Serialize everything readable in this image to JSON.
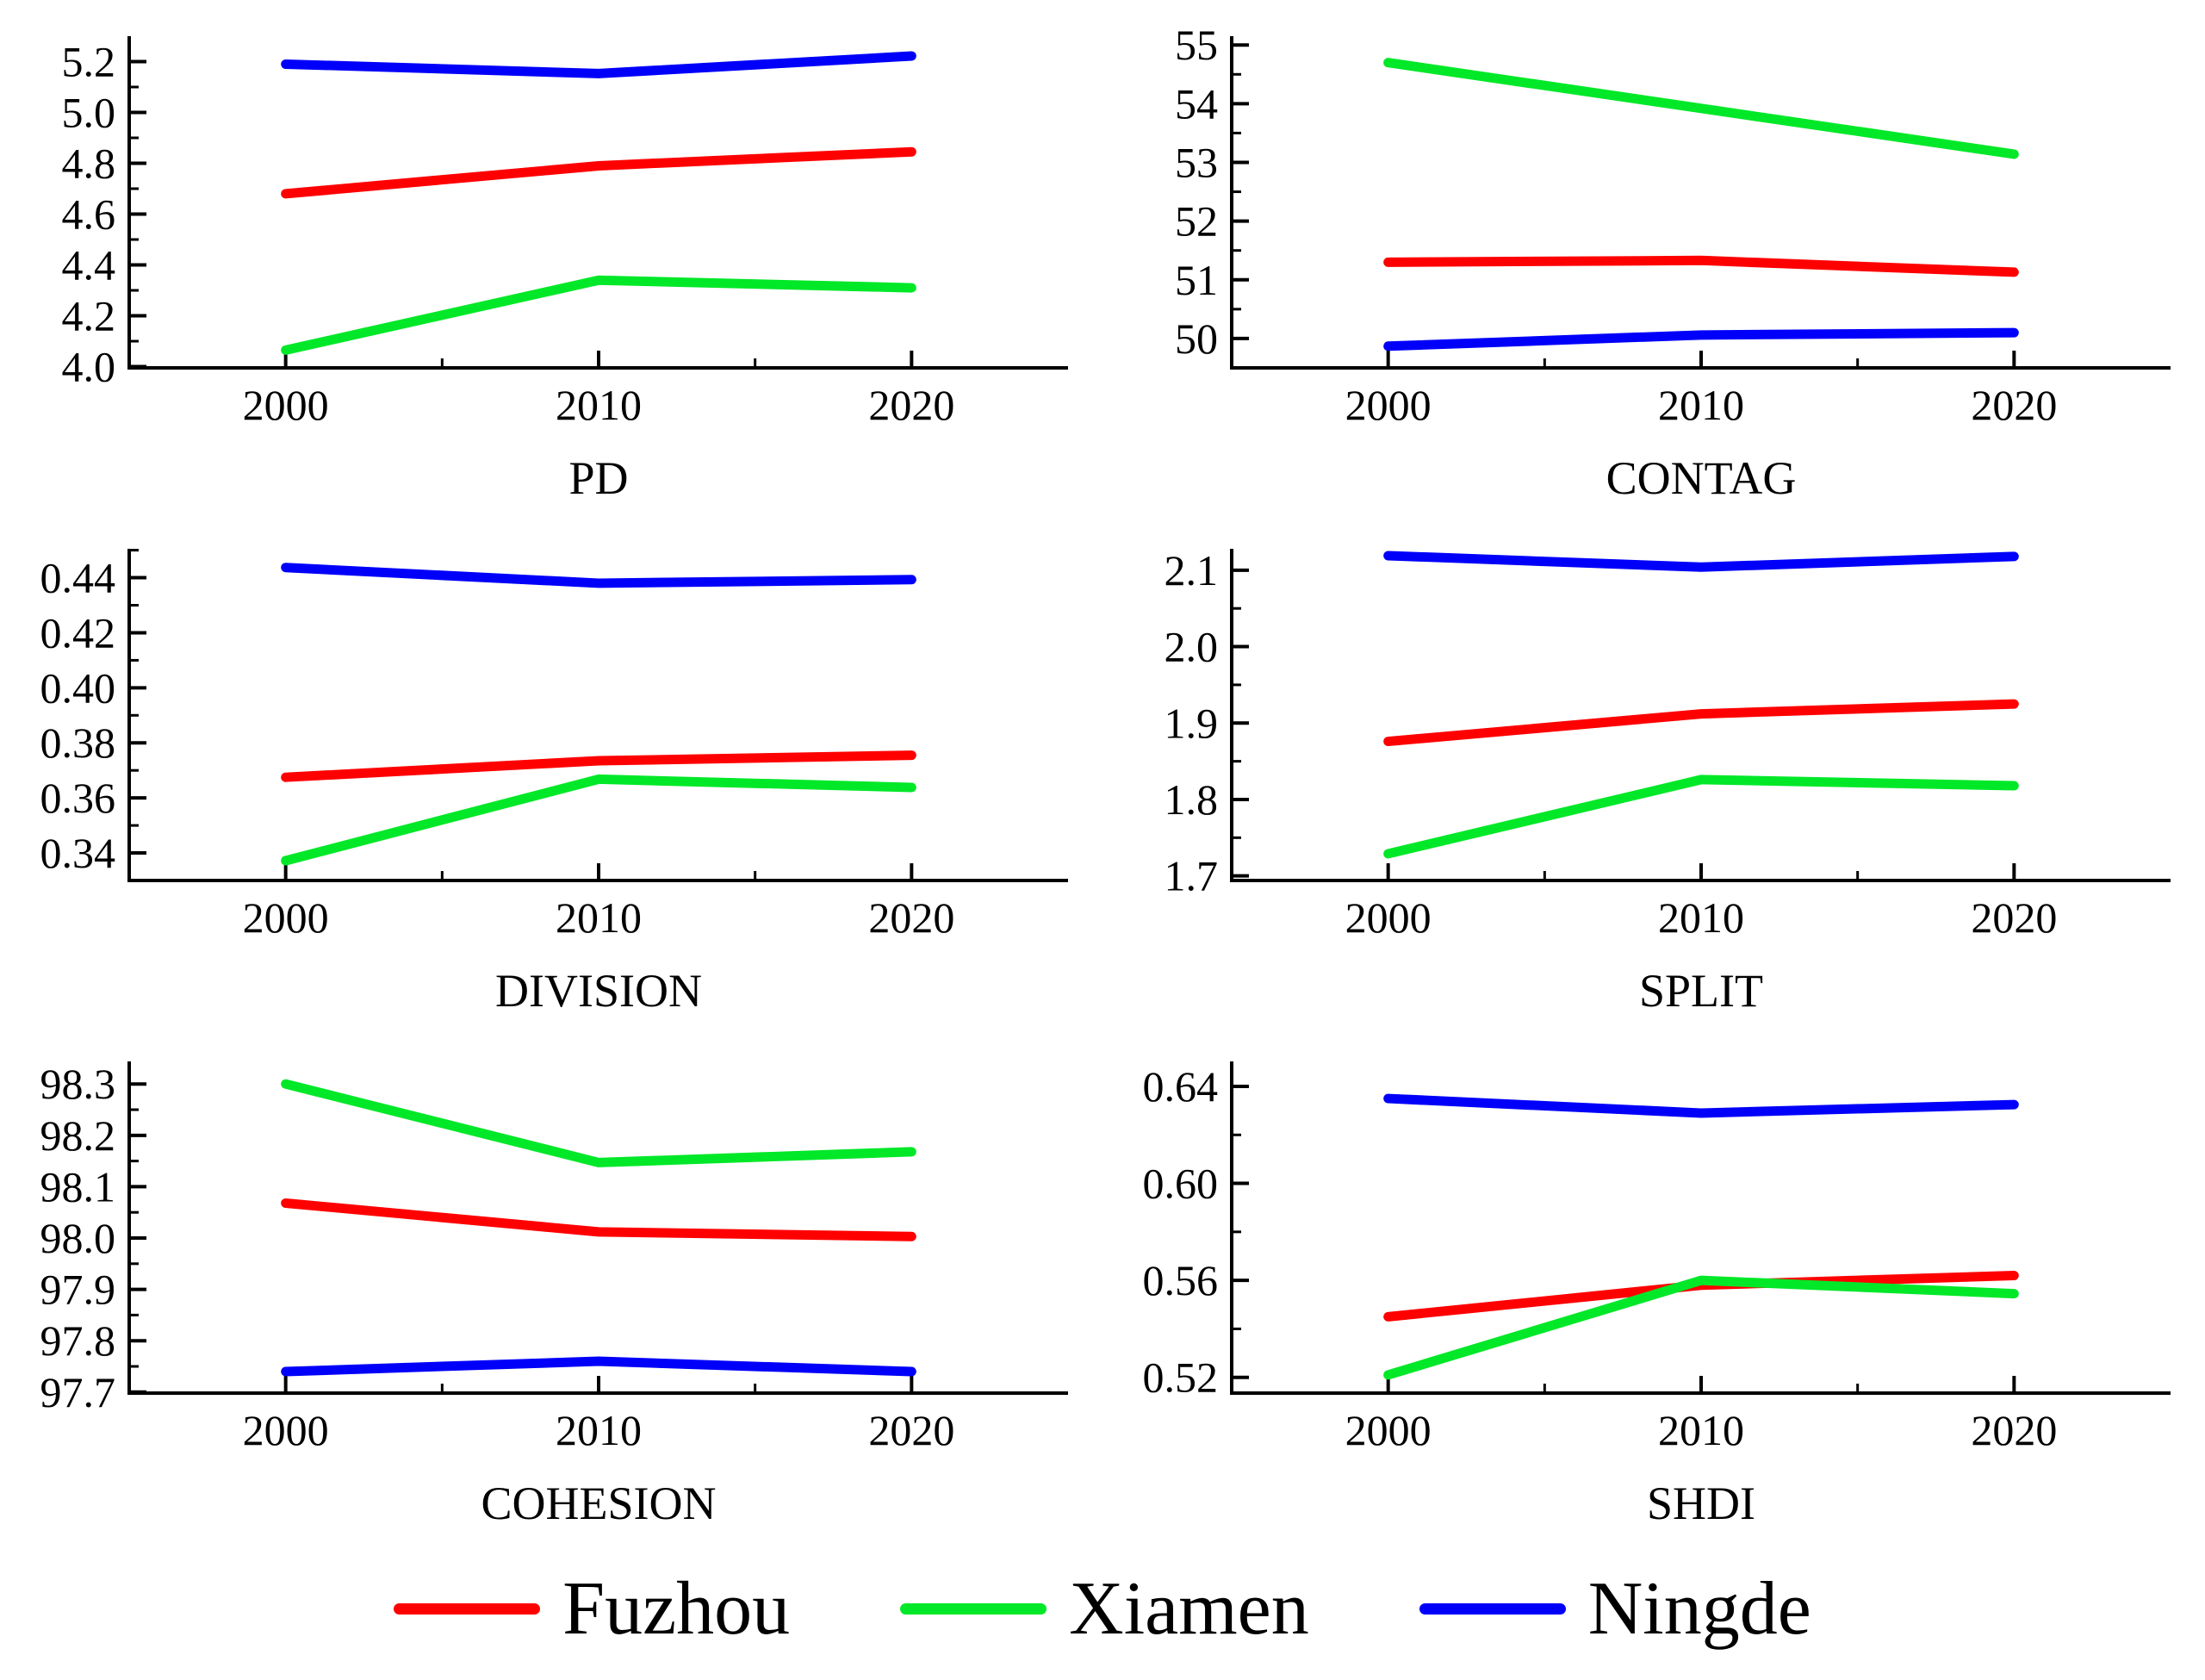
{
  "figure": {
    "background": "#FFFFFF",
    "axis_color": "#000000"
  },
  "legend": {
    "position": "bottom-center",
    "items": [
      {
        "label": "Fuzhou",
        "color": "#FF0000"
      },
      {
        "label": "Xiamen",
        "color": "#00E828"
      },
      {
        "label": "Ningde",
        "color": "#0000FA"
      }
    ]
  },
  "chart_data": [
    {
      "type": "line",
      "title": "PD",
      "x": [
        2000,
        2010,
        2020
      ],
      "xlim": [
        1995,
        2025
      ],
      "xticks": [
        2000,
        2010,
        2020
      ],
      "xminor": [
        2005,
        2015
      ],
      "ylim": [
        3.995,
        5.3
      ],
      "yticks": [
        {
          "v": 4.0,
          "t": "4.0"
        },
        {
          "v": 4.2,
          "t": "4.2"
        },
        {
          "v": 4.4,
          "t": "4.4"
        },
        {
          "v": 4.6,
          "t": "4.6"
        },
        {
          "v": 4.8,
          "t": "4.8"
        },
        {
          "v": 5.0,
          "t": "5.0"
        },
        {
          "v": 5.2,
          "t": "5.2"
        }
      ],
      "yminor": [
        4.1,
        4.3,
        4.5,
        4.7,
        4.9,
        5.1
      ],
      "grid": false,
      "series": [
        {
          "name": "Fuzhou",
          "color": "#FF0000",
          "values": [
            4.68,
            4.79,
            4.845
          ]
        },
        {
          "name": "Xiamen",
          "color": "#00E828",
          "values": [
            4.065,
            4.34,
            4.31
          ]
        },
        {
          "name": "Ningde",
          "color": "#0000FA",
          "values": [
            5.19,
            5.153,
            5.222
          ]
        }
      ]
    },
    {
      "type": "line",
      "title": "CONTAG",
      "x": [
        2000,
        2010,
        2020
      ],
      "xlim": [
        1995,
        2025
      ],
      "xticks": [
        2000,
        2010,
        2020
      ],
      "xminor": [
        2005,
        2015
      ],
      "ylim": [
        49.5,
        55.15
      ],
      "yticks": [
        {
          "v": 50,
          "t": "50"
        },
        {
          "v": 51,
          "t": "51"
        },
        {
          "v": 52,
          "t": "52"
        },
        {
          "v": 53,
          "t": "53"
        },
        {
          "v": 54,
          "t": "54"
        },
        {
          "v": 55,
          "t": "55"
        }
      ],
      "yminor": [
        50.5,
        51.5,
        52.5,
        53.5,
        54.5
      ],
      "grid": false,
      "series": [
        {
          "name": "Fuzhou",
          "color": "#FF0000",
          "values": [
            51.3,
            51.33,
            51.13
          ]
        },
        {
          "name": "Xiamen",
          "color": "#00E828",
          "values": [
            54.7,
            53.92,
            53.14
          ]
        },
        {
          "name": "Ningde",
          "color": "#0000FA",
          "values": [
            49.87,
            50.06,
            50.1
          ]
        }
      ]
    },
    {
      "type": "line",
      "title": "DIVISION",
      "x": [
        2000,
        2010,
        2020
      ],
      "xlim": [
        1995,
        2025
      ],
      "xticks": [
        2000,
        2010,
        2020
      ],
      "xminor": [
        2005,
        2015
      ],
      "ylim": [
        0.33,
        0.4505
      ],
      "yticks": [
        {
          "v": 0.34,
          "t": "0.34"
        },
        {
          "v": 0.36,
          "t": "0.36"
        },
        {
          "v": 0.38,
          "t": "0.38"
        },
        {
          "v": 0.4,
          "t": "0.40"
        },
        {
          "v": 0.42,
          "t": "0.42"
        },
        {
          "v": 0.44,
          "t": "0.44"
        }
      ],
      "yminor": [
        0.35,
        0.37,
        0.39,
        0.41,
        0.43,
        0.45
      ],
      "grid": false,
      "series": [
        {
          "name": "Fuzhou",
          "color": "#FF0000",
          "values": [
            0.3675,
            0.3735,
            0.3755
          ]
        },
        {
          "name": "Xiamen",
          "color": "#00E828",
          "values": [
            0.3372,
            0.3668,
            0.3638
          ]
        },
        {
          "name": "Ningde",
          "color": "#0000FA",
          "values": [
            0.4437,
            0.438,
            0.4393
          ]
        }
      ]
    },
    {
      "type": "line",
      "title": "SPLIT",
      "x": [
        2000,
        2010,
        2020
      ],
      "xlim": [
        1995,
        2025
      ],
      "xticks": [
        2000,
        2010,
        2020
      ],
      "xminor": [
        2005,
        2015
      ],
      "ylim": [
        1.694,
        2.128
      ],
      "yticks": [
        {
          "v": 1.7,
          "t": "1.7"
        },
        {
          "v": 1.8,
          "t": "1.8"
        },
        {
          "v": 1.9,
          "t": "1.9"
        },
        {
          "v": 2.0,
          "t": "2.0"
        },
        {
          "v": 2.1,
          "t": "2.1"
        }
      ],
      "yminor": [
        1.75,
        1.85,
        1.95,
        2.05
      ],
      "grid": false,
      "series": [
        {
          "name": "Fuzhou",
          "color": "#FF0000",
          "values": [
            1.876,
            1.912,
            1.925
          ]
        },
        {
          "name": "Xiamen",
          "color": "#00E828",
          "values": [
            1.729,
            1.826,
            1.818
          ]
        },
        {
          "name": "Ningde",
          "color": "#0000FA",
          "values": [
            2.119,
            2.104,
            2.118
          ]
        }
      ]
    },
    {
      "type": "line",
      "title": "COHESION",
      "x": [
        2000,
        2010,
        2020
      ],
      "xlim": [
        1995,
        2025
      ],
      "xticks": [
        2000,
        2010,
        2020
      ],
      "xminor": [
        2005,
        2015
      ],
      "ylim": [
        97.698,
        98.344
      ],
      "yticks": [
        {
          "v": 97.7,
          "t": "97.7"
        },
        {
          "v": 97.8,
          "t": "97.8"
        },
        {
          "v": 97.9,
          "t": "97.9"
        },
        {
          "v": 98.0,
          "t": "98.0"
        },
        {
          "v": 98.1,
          "t": "98.1"
        },
        {
          "v": 98.2,
          "t": "98.2"
        },
        {
          "v": 98.3,
          "t": "98.3"
        }
      ],
      "yminor": [
        97.75,
        97.85,
        97.95,
        98.05,
        98.15,
        98.25
      ],
      "grid": false,
      "series": [
        {
          "name": "Fuzhou",
          "color": "#FF0000",
          "values": [
            98.068,
            98.012,
            98.003
          ]
        },
        {
          "name": "Xiamen",
          "color": "#00E828",
          "values": [
            98.3,
            98.147,
            98.168
          ]
        },
        {
          "name": "Ningde",
          "color": "#0000FA",
          "values": [
            97.74,
            97.76,
            97.74
          ]
        }
      ]
    },
    {
      "type": "line",
      "title": "SHDI",
      "x": [
        2000,
        2010,
        2020
      ],
      "xlim": [
        1995,
        2025
      ],
      "xticks": [
        2000,
        2010,
        2020
      ],
      "xminor": [
        2005,
        2015
      ],
      "ylim": [
        0.5135,
        0.6503
      ],
      "yticks": [
        {
          "v": 0.52,
          "t": "0.52"
        },
        {
          "v": 0.56,
          "t": "0.56"
        },
        {
          "v": 0.6,
          "t": "0.60"
        },
        {
          "v": 0.64,
          "t": "0.64"
        }
      ],
      "yminor": [
        0.54,
        0.58,
        0.62
      ],
      "grid": false,
      "series": [
        {
          "name": "Fuzhou",
          "color": "#FF0000",
          "values": [
            0.545,
            0.558,
            0.562
          ]
        },
        {
          "name": "Xiamen",
          "color": "#00E828",
          "values": [
            0.521,
            0.56,
            0.5545
          ]
        },
        {
          "name": "Ningde",
          "color": "#0000FA",
          "values": [
            0.635,
            0.629,
            0.6325
          ]
        }
      ]
    }
  ]
}
